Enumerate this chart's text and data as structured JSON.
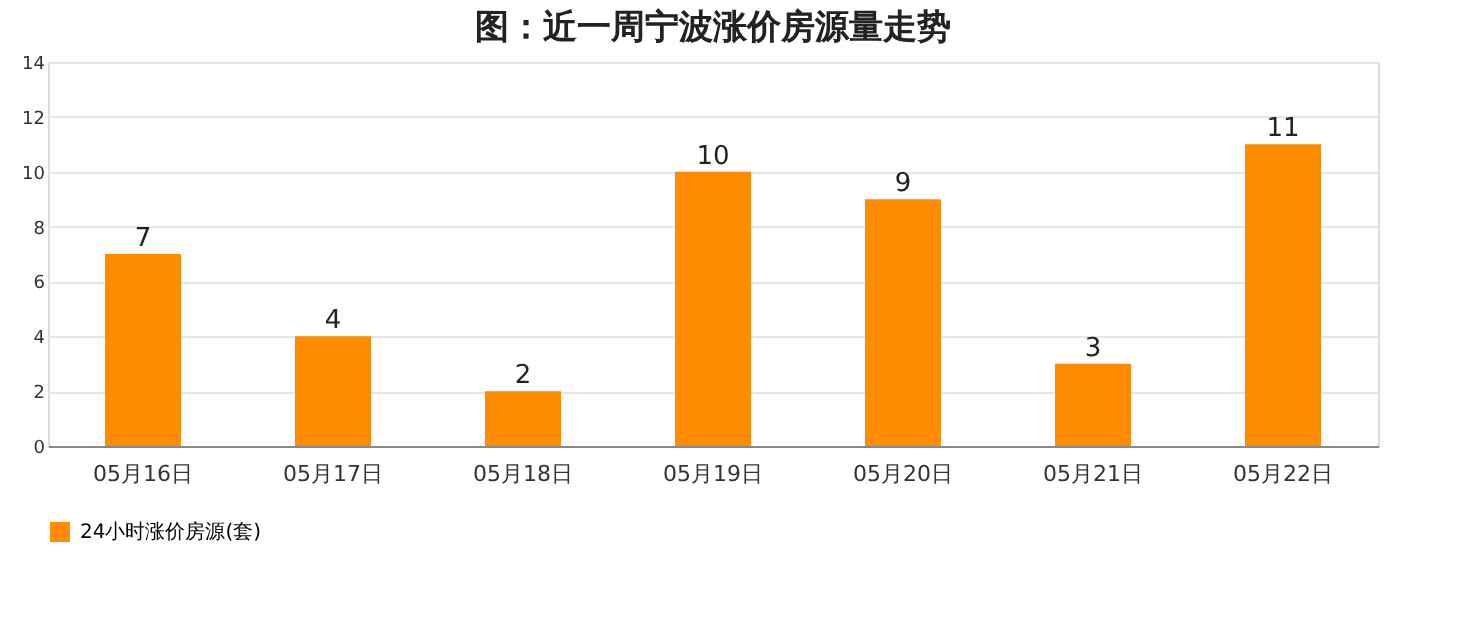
{
  "chart_data": {
    "type": "bar",
    "title": "图：近一周宁波涨价房源量走势",
    "categories": [
      "05月16日",
      "05月17日",
      "05月18日",
      "05月19日",
      "05月20日",
      "05月21日",
      "05月22日"
    ],
    "series": [
      {
        "name": "24小时涨价房源(套)",
        "color": "#ff8c00",
        "values": [
          7,
          4,
          2,
          10,
          9,
          3,
          11
        ]
      }
    ],
    "ylim": [
      0,
      14
    ],
    "yticks": [
      0,
      2,
      4,
      6,
      8,
      10,
      12,
      14
    ],
    "grid": "y",
    "legend": "bottom",
    "data_labels": true
  }
}
